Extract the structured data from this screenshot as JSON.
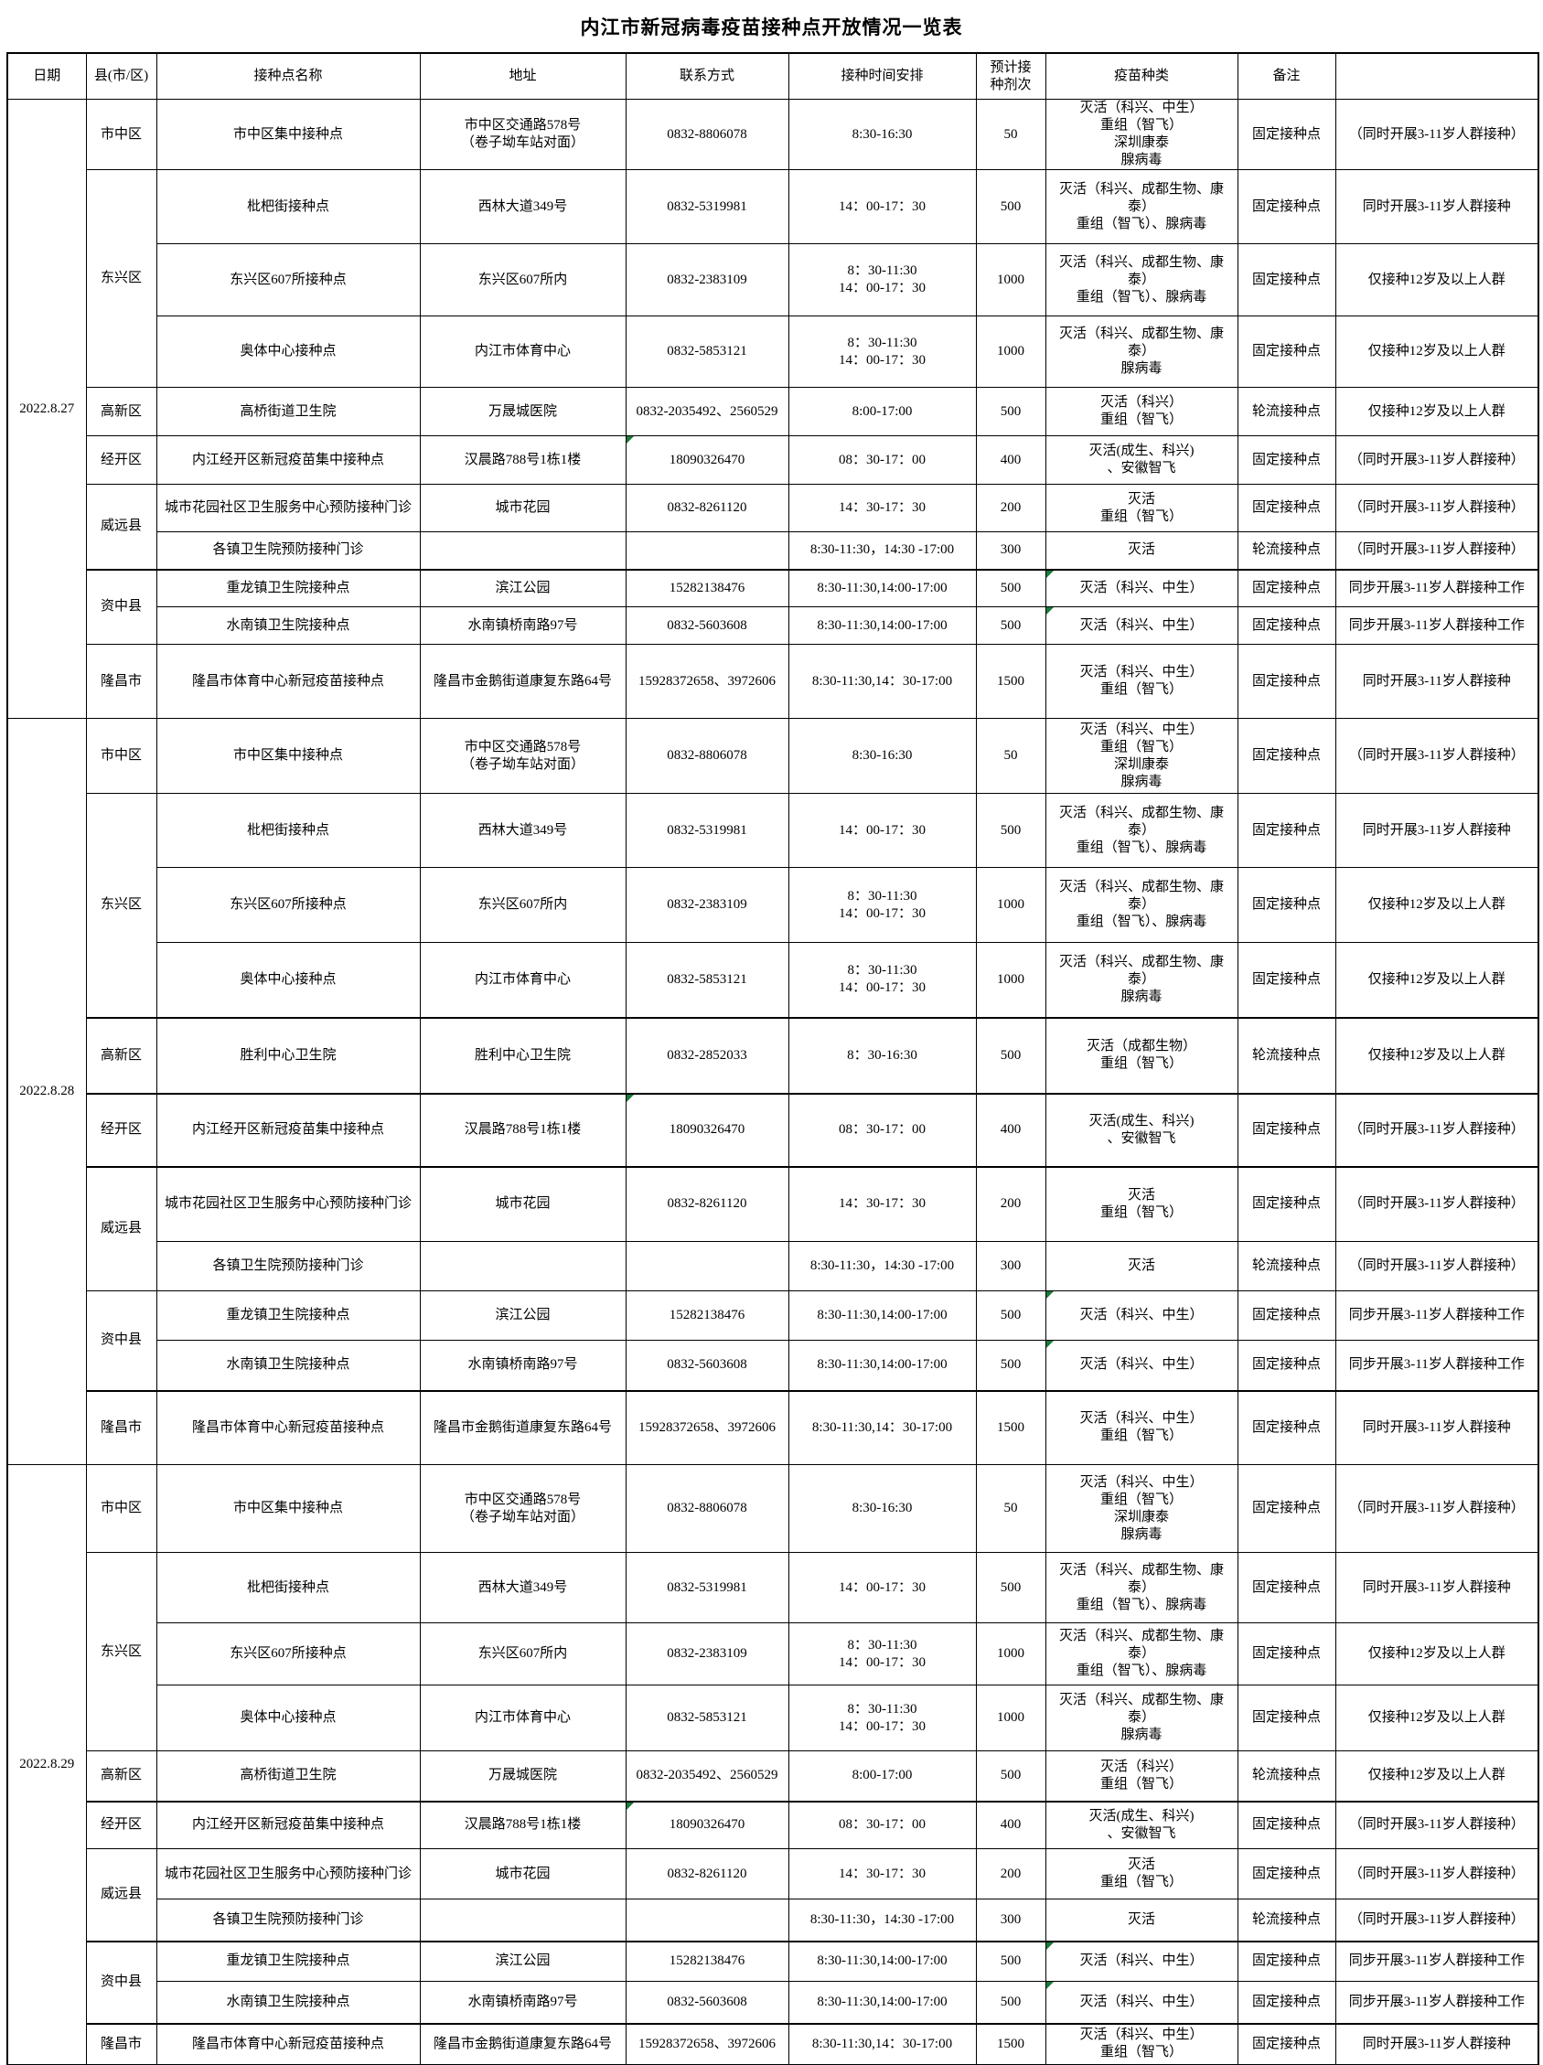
{
  "title": "内江市新冠病毒疫苗接种点开放情况一览表",
  "colors": {
    "border": "#000000",
    "green_mark": "#1b7a3b",
    "background": "#ffffff"
  },
  "columns": [
    "日期",
    "县(市/区)",
    "接种点名称",
    "地址",
    "联系方式",
    "接种时间安排",
    "预计接\n种剂次",
    "疫苗种类",
    "备注",
    ""
  ],
  "sections": [
    {
      "date": "2022.8.27",
      "rows": [
        {
          "county": "市中区",
          "span": 1,
          "name": "市中区集中接种点",
          "address": "市中区交通路578号\n（卷子坳车站对面）",
          "phone": "0832-8806078",
          "time": "8:30-16:30",
          "doses": "50",
          "vaccine": "灭活（科兴、中生）\n重组（智飞）\n深圳康泰\n腺病毒",
          "type": "固定接种点",
          "note": "（同时开展3-11岁人群接种）"
        },
        {
          "county": "东兴区",
          "span": 3,
          "name": "枇杷街接种点",
          "address": "西林大道349号",
          "phone": "0832-5319981",
          "time": "14：00-17：30",
          "doses": "500",
          "vaccine": "灭活（科兴、成都生物、康\n泰）\n重组（智飞）、腺病毒",
          "type": "固定接种点",
          "note": "同时开展3-11岁人群接种"
        },
        {
          "name": "东兴区607所接种点",
          "address": "东兴区607所内",
          "phone": "0832-2383109",
          "time": "8：30-11:30\n14：00-17：30",
          "doses": "1000",
          "vaccine": "灭活（科兴、成都生物、康\n泰）\n重组（智飞）、腺病毒",
          "type": "固定接种点",
          "note": "仅接种12岁及以上人群"
        },
        {
          "name": "奥体中心接种点",
          "address": "内江市体育中心",
          "phone": "0832-5853121",
          "time": "8：30-11:30\n14：00-17：30",
          "doses": "1000",
          "vaccine": "灭活（科兴、成都生物、康\n泰）\n腺病毒",
          "type": "固定接种点",
          "note": "仅接种12岁及以上人群"
        },
        {
          "county": "高新区",
          "span": 1,
          "name": "高桥街道卫生院",
          "address": "万晟城医院",
          "phone": "0832-2035492、2560529",
          "time": "8:00-17:00",
          "doses": "500",
          "vaccine": "灭活（科兴）\n重组（智飞）",
          "type": "轮流接种点",
          "note": "仅接种12岁及以上人群"
        },
        {
          "county": "经开区",
          "span": 1,
          "name": "内江经开区新冠疫苗集中接种点",
          "address": "汉晨路788号1栋1楼",
          "phone": "18090326470",
          "time": "08：30-17：00",
          "doses": "400",
          "vaccine": "灭活(成生、科兴)\n、安徽智飞",
          "type": "固定接种点",
          "note": "（同时开展3-11岁人群接种）"
        },
        {
          "county": "威远县",
          "span": 2,
          "name": "城市花园社区卫生服务中心预防接种门诊",
          "address": "城市花园",
          "phone": "0832-8261120",
          "time": "14：30-17：30",
          "doses": "200",
          "vaccine": "灭活\n重组（智飞）",
          "type": "固定接种点",
          "note": "（同时开展3-11岁人群接种）"
        },
        {
          "name": "各镇卫生院预防接种门诊",
          "address": "",
          "phone": "",
          "time": "8:30-11:30，14:30 -17:00",
          "doses": "300",
          "vaccine": "灭活",
          "type": "轮流接种点",
          "note": "（同时开展3-11岁人群接种）"
        },
        {
          "county": "资中县",
          "span": 2,
          "name": "重龙镇卫生院接种点",
          "address": "滨江公园",
          "phone": "15282138476",
          "time": "8:30-11:30,14:00-17:00",
          "doses": "500",
          "vaccine": "灭活（科兴、中生）",
          "type": "固定接种点",
          "note": "同步开展3-11岁人群接种工作"
        },
        {
          "name": "水南镇卫生院接种点",
          "address": "水南镇桥南路97号",
          "phone": "0832-5603608",
          "time": "8:30-11:30,14:00-17:00",
          "doses": "500",
          "vaccine": "灭活（科兴、中生）",
          "type": "固定接种点",
          "note": "同步开展3-11岁人群接种工作"
        },
        {
          "county": "隆昌市",
          "span": 1,
          "name": "隆昌市体育中心新冠疫苗接种点",
          "address": "隆昌市金鹅街道康复东路64号",
          "phone": "15928372658、3972606",
          "time": "8:30-11:30,14：30-17:00",
          "doses": "1500",
          "vaccine": "灭活（科兴、中生）\n重组（智飞）",
          "type": "固定接种点",
          "note": "同时开展3-11岁人群接种"
        }
      ]
    },
    {
      "date": "2022.8.28",
      "rows": [
        {
          "county": "市中区",
          "span": 1,
          "name": "市中区集中接种点",
          "address": "市中区交通路578号\n（卷子坳车站对面）",
          "phone": "0832-8806078",
          "time": "8:30-16:30",
          "doses": "50",
          "vaccine": "灭活（科兴、中生）\n重组（智飞）\n深圳康泰\n腺病毒",
          "type": "固定接种点",
          "note": "（同时开展3-11岁人群接种）"
        },
        {
          "county": "东兴区",
          "span": 3,
          "name": "枇杷街接种点",
          "address": "西林大道349号",
          "phone": "0832-5319981",
          "time": "14：00-17：30",
          "doses": "500",
          "vaccine": "灭活（科兴、成都生物、康\n泰）\n重组（智飞）、腺病毒",
          "type": "固定接种点",
          "note": "同时开展3-11岁人群接种"
        },
        {
          "name": "东兴区607所接种点",
          "address": "东兴区607所内",
          "phone": "0832-2383109",
          "time": "8：30-11:30\n14：00-17：30",
          "doses": "1000",
          "vaccine": "灭活（科兴、成都生物、康\n泰）\n重组（智飞）、腺病毒",
          "type": "固定接种点",
          "note": "仅接种12岁及以上人群"
        },
        {
          "name": "奥体中心接种点",
          "address": "内江市体育中心",
          "phone": "0832-5853121",
          "time": "8：30-11:30\n14：00-17：30",
          "doses": "1000",
          "vaccine": "灭活（科兴、成都生物、康\n泰）\n腺病毒",
          "type": "固定接种点",
          "note": "仅接种12岁及以上人群"
        },
        {
          "county": "高新区",
          "span": 1,
          "name": "胜利中心卫生院",
          "address": "胜利中心卫生院",
          "phone": "0832-2852033",
          "time": "8：30-16:30",
          "doses": "500",
          "vaccine": "灭活（成都生物）\n重组（智飞）",
          "type": "轮流接种点",
          "note": "仅接种12岁及以上人群"
        },
        {
          "county": "经开区",
          "span": 1,
          "name": "内江经开区新冠疫苗集中接种点",
          "address": "汉晨路788号1栋1楼",
          "phone": "18090326470",
          "time": "08：30-17：00",
          "doses": "400",
          "vaccine": "灭活(成生、科兴)\n、安徽智飞",
          "type": "固定接种点",
          "note": "（同时开展3-11岁人群接种）"
        },
        {
          "county": "威远县",
          "span": 2,
          "name": "城市花园社区卫生服务中心预防接种门诊",
          "address": "城市花园",
          "phone": "0832-8261120",
          "time": "14：30-17：30",
          "doses": "200",
          "vaccine": "灭活\n重组（智飞）",
          "type": "固定接种点",
          "note": "（同时开展3-11岁人群接种）"
        },
        {
          "name": "各镇卫生院预防接种门诊",
          "address": "",
          "phone": "",
          "time": "8:30-11:30，14:30 -17:00",
          "doses": "300",
          "vaccine": "灭活",
          "type": "轮流接种点",
          "note": "（同时开展3-11岁人群接种）"
        },
        {
          "county": "资中县",
          "span": 2,
          "name": "重龙镇卫生院接种点",
          "address": "滨江公园",
          "phone": "15282138476",
          "time": "8:30-11:30,14:00-17:00",
          "doses": "500",
          "vaccine": "灭活（科兴、中生）",
          "type": "固定接种点",
          "note": "同步开展3-11岁人群接种工作"
        },
        {
          "name": "水南镇卫生院接种点",
          "address": "水南镇桥南路97号",
          "phone": "0832-5603608",
          "time": "8:30-11:30,14:00-17:00",
          "doses": "500",
          "vaccine": "灭活（科兴、中生）",
          "type": "固定接种点",
          "note": "同步开展3-11岁人群接种工作"
        },
        {
          "county": "隆昌市",
          "span": 1,
          "name": "隆昌市体育中心新冠疫苗接种点",
          "address": "隆昌市金鹅街道康复东路64号",
          "phone": "15928372658、3972606",
          "time": "8:30-11:30,14：30-17:00",
          "doses": "1500",
          "vaccine": "灭活（科兴、中生）\n重组（智飞）",
          "type": "固定接种点",
          "note": "同时开展3-11岁人群接种"
        }
      ]
    },
    {
      "date": "2022.8.29",
      "rows": [
        {
          "county": "市中区",
          "span": 1,
          "name": "市中区集中接种点",
          "address": "市中区交通路578号\n（卷子坳车站对面）",
          "phone": "0832-8806078",
          "time": "8:30-16:30",
          "doses": "50",
          "vaccine": "灭活（科兴、中生）\n重组（智飞）\n深圳康泰\n腺病毒",
          "type": "固定接种点",
          "note": "（同时开展3-11岁人群接种）"
        },
        {
          "county": "东兴区",
          "span": 3,
          "name": "枇杷街接种点",
          "address": "西林大道349号",
          "phone": "0832-5319981",
          "time": "14：00-17：30",
          "doses": "500",
          "vaccine": "灭活（科兴、成都生物、康\n泰）\n重组（智飞）、腺病毒",
          "type": "固定接种点",
          "note": "同时开展3-11岁人群接种"
        },
        {
          "name": "东兴区607所接种点",
          "address": "东兴区607所内",
          "phone": "0832-2383109",
          "time": "8：30-11:30\n14：00-17：30",
          "doses": "1000",
          "vaccine": "灭活（科兴、成都生物、康\n泰）\n重组（智飞）、腺病毒",
          "type": "固定接种点",
          "note": "仅接种12岁及以上人群"
        },
        {
          "name": "奥体中心接种点",
          "address": "内江市体育中心",
          "phone": "0832-5853121",
          "time": "8：30-11:30\n14：00-17：30",
          "doses": "1000",
          "vaccine": "灭活（科兴、成都生物、康\n泰）\n腺病毒",
          "type": "固定接种点",
          "note": "仅接种12岁及以上人群"
        },
        {
          "county": "高新区",
          "span": 1,
          "name": "高桥街道卫生院",
          "address": "万晟城医院",
          "phone": "0832-2035492、2560529",
          "time": "8:00-17:00",
          "doses": "500",
          "vaccine": "灭活（科兴）\n重组（智飞）",
          "type": "轮流接种点",
          "note": "仅接种12岁及以上人群"
        },
        {
          "county": "经开区",
          "span": 1,
          "name": "内江经开区新冠疫苗集中接种点",
          "address": "汉晨路788号1栋1楼",
          "phone": "18090326470",
          "time": "08：30-17：00",
          "doses": "400",
          "vaccine": "灭活(成生、科兴)\n、安徽智飞",
          "type": "固定接种点",
          "note": "（同时开展3-11岁人群接种）"
        },
        {
          "county": "威远县",
          "span": 2,
          "name": "城市花园社区卫生服务中心预防接种门诊",
          "address": "城市花园",
          "phone": "0832-8261120",
          "time": "14：30-17：30",
          "doses": "200",
          "vaccine": "灭活\n重组（智飞）",
          "type": "固定接种点",
          "note": "（同时开展3-11岁人群接种）"
        },
        {
          "name": "各镇卫生院预防接种门诊",
          "address": "",
          "phone": "",
          "time": "8:30-11:30，14:30 -17:00",
          "doses": "300",
          "vaccine": "灭活",
          "type": "轮流接种点",
          "note": "（同时开展3-11岁人群接种）"
        },
        {
          "county": "资中县",
          "span": 2,
          "name": "重龙镇卫生院接种点",
          "address": "滨江公园",
          "phone": "15282138476",
          "time": "8:30-11:30,14:00-17:00",
          "doses": "500",
          "vaccine": "灭活（科兴、中生）",
          "type": "固定接种点",
          "note": "同步开展3-11岁人群接种工作"
        },
        {
          "name": "水南镇卫生院接种点",
          "address": "水南镇桥南路97号",
          "phone": "0832-5603608",
          "time": "8:30-11:30,14:00-17:00",
          "doses": "500",
          "vaccine": "灭活（科兴、中生）",
          "type": "固定接种点",
          "note": "同步开展3-11岁人群接种工作"
        },
        {
          "county": "隆昌市",
          "span": 1,
          "name": "隆昌市体育中心新冠疫苗接种点",
          "address": "隆昌市金鹅街道康复东路64号",
          "phone": "15928372658、3972606",
          "time": "8:30-11:30,14：30-17:00",
          "doses": "1500",
          "vaccine": "灭活（科兴、中生）\n重组（智飞）",
          "type": "固定接种点",
          "note": "同时开展3-11岁人群接种"
        }
      ]
    }
  ]
}
